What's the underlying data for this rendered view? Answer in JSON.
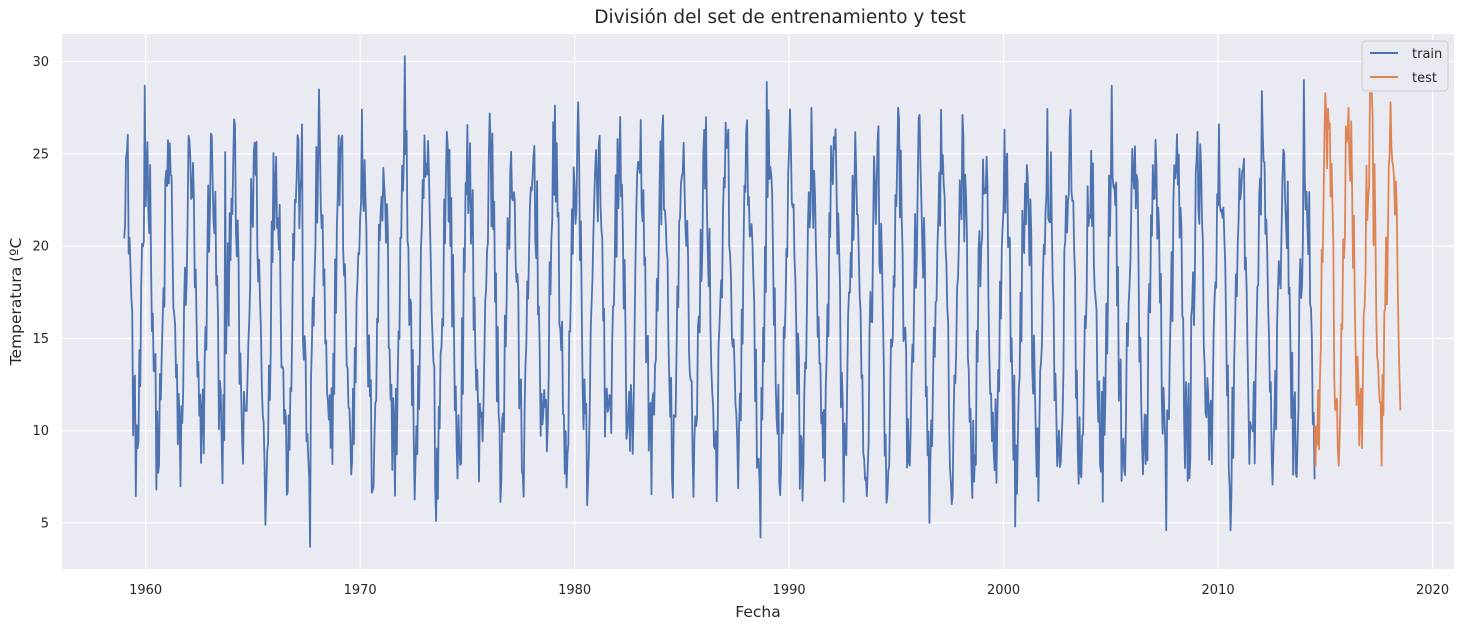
{
  "chart_data": {
    "type": "line",
    "title": "División del set de entrenamiento y test",
    "xlabel": "Fecha",
    "ylabel": "Temperatura (ºC",
    "xlim": [
      1956.1,
      2021.0
    ],
    "ylim": [
      2.5,
      31.5
    ],
    "xticks": [
      1960,
      1970,
      1980,
      1990,
      2000,
      2010,
      2020
    ],
    "yticks": [
      5,
      10,
      15,
      20,
      25,
      30
    ],
    "grid": true,
    "legend_position": "top-right",
    "background": "#eaeaf2",
    "series": [
      {
        "name": "train",
        "color": "#4c72b0",
        "x_start": 1959.0,
        "x_end": 2014.5,
        "samples_per_year": 24,
        "seasonal_peak_x": 1960.08,
        "typical_max": 24.5,
        "typical_min": 9.0,
        "min_value": 3.7,
        "max_value": 30.3,
        "extremes": [
          {
            "x": 1959.95,
            "y": 28.7
          },
          {
            "x": 1963.7,
            "y": 25.1
          },
          {
            "x": 1965.6,
            "y": 4.9
          },
          {
            "x": 1967.3,
            "y": 26.6
          },
          {
            "x": 1967.65,
            "y": 3.7
          },
          {
            "x": 1968.1,
            "y": 28.5
          },
          {
            "x": 1972.1,
            "y": 30.3
          },
          {
            "x": 1973.55,
            "y": 5.1
          },
          {
            "x": 1980.15,
            "y": 27.8
          },
          {
            "x": 1988.65,
            "y": 4.2
          },
          {
            "x": 1988.95,
            "y": 28.9
          },
          {
            "x": 1996.55,
            "y": 5.0
          },
          {
            "x": 2000.55,
            "y": 4.8
          },
          {
            "x": 2005.05,
            "y": 28.7
          },
          {
            "x": 2007.6,
            "y": 4.6
          },
          {
            "x": 2010.6,
            "y": 4.6
          },
          {
            "x": 2012.05,
            "y": 28.4
          },
          {
            "x": 2014.0,
            "y": 29.0
          }
        ]
      },
      {
        "name": "test",
        "color": "#dd8452",
        "x_start": 2014.5,
        "x_end": 2018.5,
        "samples_per_year": 24,
        "seasonal_peak_x": 2015.1,
        "typical_max": 26.8,
        "typical_min": 9.8,
        "min_value": 8.1,
        "max_value": 28.3,
        "extremes": [
          {
            "x": 2014.55,
            "y": 8.1
          },
          {
            "x": 2015.15,
            "y": 26.4
          },
          {
            "x": 2015.6,
            "y": 9.0
          },
          {
            "x": 2016.1,
            "y": 27.5
          },
          {
            "x": 2016.6,
            "y": 9.2
          },
          {
            "x": 2017.1,
            "y": 28.3
          },
          {
            "x": 2017.6,
            "y": 11.5
          },
          {
            "x": 2018.05,
            "y": 27.8
          },
          {
            "x": 2018.5,
            "y": 11.1
          }
        ]
      }
    ]
  }
}
